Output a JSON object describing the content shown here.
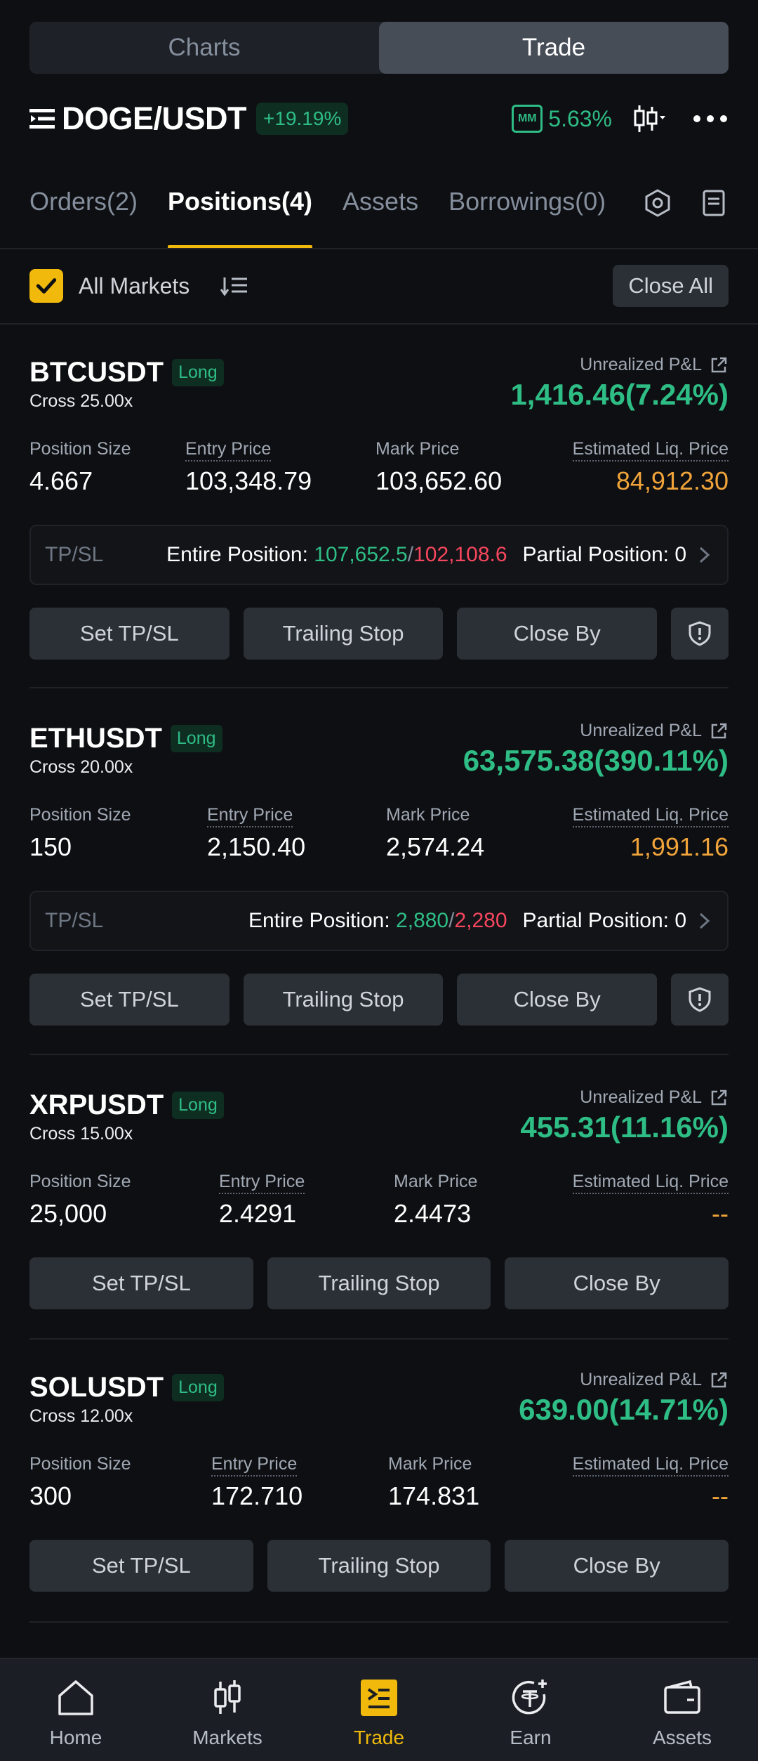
{
  "segment": {
    "charts": "Charts",
    "trade": "Trade"
  },
  "header": {
    "pair": "DOGE/USDT",
    "change": "+19.19%",
    "mm_label": "MM",
    "mm_value": "5.63%"
  },
  "tabs": [
    "Orders(2)",
    "Positions(4)",
    "Assets",
    "Borrowings(0)"
  ],
  "filter": {
    "label": "All Markets",
    "close_all": "Close All"
  },
  "labels": {
    "unrealized": "Unrealized P&L",
    "position_size": "Position Size",
    "entry_price": "Entry Price",
    "mark_price": "Mark Price",
    "liq_price": "Estimated Liq. Price",
    "tpsl": "TP/SL",
    "entire_position": "Entire Position: ",
    "partial_position": "Partial Position: 0",
    "slash": "/",
    "set_tpsl": "Set TP/SL",
    "trailing_stop": "Trailing Stop",
    "close_by": "Close By"
  },
  "positions": [
    {
      "symbol": "BTCUSDT",
      "side": "Long",
      "cross": "Cross 25.00x",
      "pnl": "1,416.46(7.24%)",
      "size": "4.667",
      "entry": "103,348.79",
      "mark": "103,652.60",
      "liq": "84,912.30",
      "tp": "107,652.5",
      "sl": "102,108.6"
    },
    {
      "symbol": "ETHUSDT",
      "side": "Long",
      "cross": "Cross 20.00x",
      "pnl": "63,575.38(390.11%)",
      "size": "150",
      "entry": "2,150.40",
      "mark": "2,574.24",
      "liq": "1,991.16",
      "tp": "2,880",
      "sl": "2,280"
    },
    {
      "symbol": "XRPUSDT",
      "side": "Long",
      "cross": "Cross 15.00x",
      "pnl": "455.31(11.16%)",
      "size": "25,000",
      "entry": "2.4291",
      "mark": "2.4473",
      "liq": "--"
    },
    {
      "symbol": "SOLUSDT",
      "side": "Long",
      "cross": "Cross 12.00x",
      "pnl": "639.00(14.71%)",
      "size": "300",
      "entry": "172.710",
      "mark": "174.831",
      "liq": "--"
    }
  ],
  "nav": [
    "Home",
    "Markets",
    "Trade",
    "Earn",
    "Assets"
  ],
  "colors": {
    "accent": "#f0b90b",
    "up": "#2ebd85",
    "down": "#f6465d",
    "liq": "#f0a43a"
  }
}
